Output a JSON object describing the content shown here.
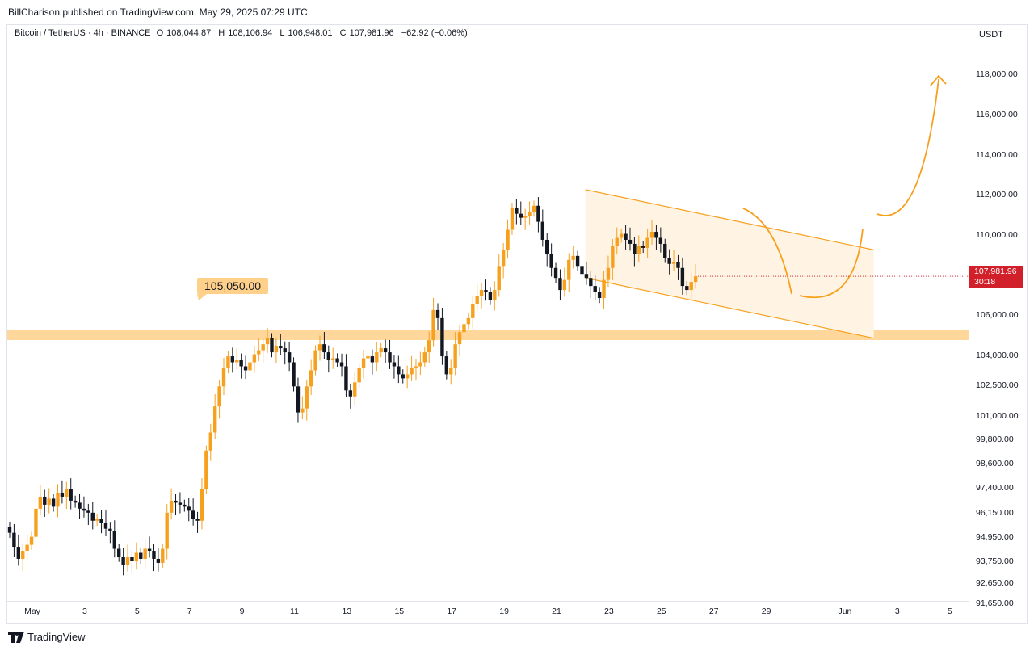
{
  "header": {
    "publish_line": "BillCharison published on TradingView.com, May 29, 2025 07:29 UTC"
  },
  "legend": {
    "symbol": "Bitcoin / TetherUS · 4h · BINANCE",
    "open_label": "O",
    "open": "108,044.87",
    "high_label": "H",
    "high": "108,106.94",
    "low_label": "L",
    "low": "106,948.01",
    "close_label": "C",
    "close": "107,981.96",
    "change": "−62.92 (−0.06%)"
  },
  "price_axis": {
    "currency": "USDT",
    "last_price": "107,981.96",
    "countdown": "30:18"
  },
  "annotations": {
    "level_label": "105,050.00"
  },
  "footer": {
    "brand": "TradingView"
  },
  "colors": {
    "up": "#f7a01e",
    "down": "#131722",
    "level_band": "#ffd08a",
    "channel_line": "#f7a01e",
    "channel_fill": "#fff4e3",
    "last_price_badge": "#d1202a"
  },
  "chart_data": {
    "type": "candlestick",
    "symbol": "Bitcoin / TetherUS",
    "interval": "4h",
    "exchange": "BINANCE",
    "ylim": [
      91000,
      119500
    ],
    "y_ticks": [
      {
        "value": 118000,
        "label": "118,000.00"
      },
      {
        "value": 116000,
        "label": "116,000.00"
      },
      {
        "value": 114000,
        "label": "114,000.00"
      },
      {
        "value": 112000,
        "label": "112,000.00"
      },
      {
        "value": 110000,
        "label": "110,000.00"
      },
      {
        "value": 106000,
        "label": "106,000.00"
      },
      {
        "value": 104000,
        "label": "104,000.00"
      },
      {
        "value": 102500,
        "label": "102,500.00"
      },
      {
        "value": 101000,
        "label": "101,000.00"
      },
      {
        "value": 99800,
        "label": "99,800.00"
      },
      {
        "value": 98600,
        "label": "98,600.00"
      },
      {
        "value": 97400,
        "label": "97,400.00"
      },
      {
        "value": 96150,
        "label": "96,150.00"
      },
      {
        "value": 94950,
        "label": "94,950.00"
      },
      {
        "value": 93750,
        "label": "93,750.00"
      },
      {
        "value": 92650,
        "label": "92,650.00"
      },
      {
        "value": 91650,
        "label": "91,650.00"
      }
    ],
    "x_ticks": [
      {
        "day": 1,
        "label": "May"
      },
      {
        "day": 3,
        "label": "3"
      },
      {
        "day": 5,
        "label": "5"
      },
      {
        "day": 7,
        "label": "7"
      },
      {
        "day": 9,
        "label": "9"
      },
      {
        "day": 11,
        "label": "11"
      },
      {
        "day": 13,
        "label": "13"
      },
      {
        "day": 15,
        "label": "15"
      },
      {
        "day": 17,
        "label": "17"
      },
      {
        "day": 19,
        "label": "19"
      },
      {
        "day": 21,
        "label": "21"
      },
      {
        "day": 23,
        "label": "23"
      },
      {
        "day": 25,
        "label": "25"
      },
      {
        "day": 27,
        "label": "27"
      },
      {
        "day": 29,
        "label": "29"
      },
      {
        "day": 32,
        "label": "Jun"
      },
      {
        "day": 34,
        "label": "3"
      },
      {
        "day": 36,
        "label": "5"
      }
    ],
    "closes": [
      95200,
      94500,
      93900,
      94300,
      94600,
      95000,
      96400,
      97000,
      96600,
      96900,
      96500,
      97200,
      97000,
      97400,
      96800,
      96700,
      96400,
      96300,
      96200,
      95800,
      95900,
      95700,
      95400,
      95300,
      94400,
      94000,
      93600,
      94000,
      93800,
      94200,
      93900,
      94400,
      94300,
      93900,
      93700,
      94400,
      96200,
      96800,
      96700,
      96600,
      96500,
      96300,
      95900,
      95800,
      97400,
      99300,
      100200,
      101500,
      102500,
      103400,
      104000,
      103700,
      103800,
      103500,
      103300,
      103700,
      104100,
      104300,
      104600,
      104900,
      104200,
      104500,
      104400,
      104200,
      103700,
      102500,
      101200,
      101400,
      102500,
      103300,
      104300,
      104600,
      104200,
      103800,
      103900,
      103700,
      103500,
      102300,
      102000,
      102700,
      103400,
      103900,
      104000,
      103700,
      104200,
      104400,
      104200,
      103700,
      103500,
      103100,
      102900,
      103100,
      103400,
      103500,
      103700,
      104200,
      104800,
      106300,
      105900,
      104000,
      103100,
      103400,
      104600,
      105200,
      105600,
      105900,
      106600,
      107000,
      107300,
      107200,
      106800,
      107300,
      108500,
      109300,
      110300,
      111400,
      111100,
      110900,
      111000,
      111200,
      111500,
      110700,
      109800,
      109100,
      108400,
      107900,
      107300,
      107800,
      108800,
      109000,
      108500,
      108100,
      107900,
      107500,
      107200,
      106900,
      107800,
      108400,
      109500,
      109900,
      110100,
      109800,
      109600,
      109100,
      109500,
      109400,
      109900,
      110200,
      109900,
      109600,
      108900,
      108600,
      108700,
      108400,
      107500,
      107300,
      107700,
      107981.96
    ],
    "level": {
      "value": 105050,
      "label": "105,050.00"
    },
    "channel": {
      "upper": [
        {
          "day": 22.1,
          "price": 112300
        },
        {
          "day": 33.1,
          "price": 109300
        }
      ],
      "lower": [
        {
          "day": 22.1,
          "price": 107900
        },
        {
          "day": 33.1,
          "price": 104900
        }
      ]
    },
    "last_price": 107981.96
  }
}
